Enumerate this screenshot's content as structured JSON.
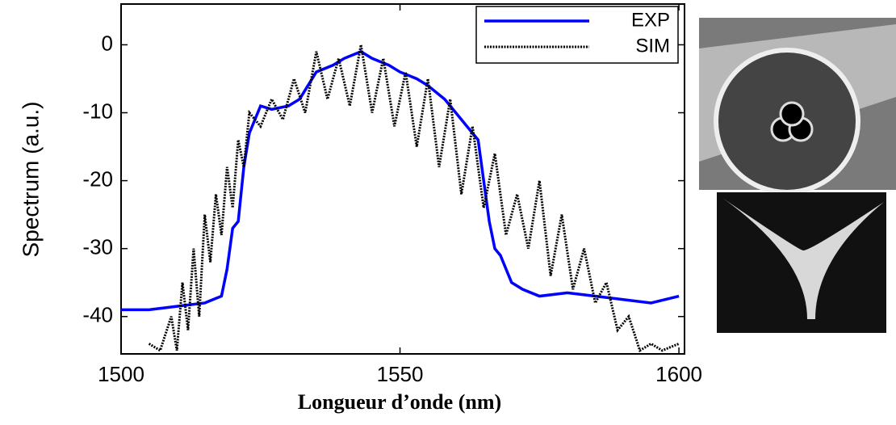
{
  "chart_data": {
    "type": "line",
    "xlabel": "Longueur d’onde (nm)",
    "ylabel": "Spectrum (a.u.)",
    "xlim": [
      1500,
      1601
    ],
    "ylim": [
      -45.5,
      6
    ],
    "xticks": [
      1500,
      1550,
      1600
    ],
    "yticks": [
      0,
      -10,
      -20,
      -30,
      -40
    ],
    "legend": "upper right",
    "series": [
      {
        "name": "EXP",
        "color": "#0000ff",
        "x": [
          1500,
          1505,
          1510,
          1515,
          1518,
          1519,
          1520,
          1521,
          1522,
          1523,
          1525,
          1527,
          1530,
          1532,
          1535,
          1538,
          1540,
          1543,
          1545,
          1548,
          1550,
          1553,
          1555,
          1558,
          1560,
          1562,
          1564,
          1565,
          1566,
          1567,
          1568,
          1570,
          1572,
          1575,
          1580,
          1585,
          1590,
          1595,
          1600
        ],
        "values": [
          -39,
          -39,
          -38.5,
          -38,
          -37,
          -33,
          -27,
          -26,
          -18,
          -13,
          -9,
          -9.5,
          -9,
          -8,
          -4,
          -3,
          -2,
          -1,
          -2,
          -3,
          -4,
          -5,
          -6,
          -8,
          -10,
          -12,
          -14,
          -20,
          -26,
          -30,
          -31,
          -35,
          -36,
          -37,
          -36.5,
          -37,
          -37.5,
          -38,
          -37
        ]
      },
      {
        "name": "SIM",
        "color": "#000000",
        "x": [
          1505,
          1507,
          1509,
          1510,
          1511,
          1512,
          1513,
          1514,
          1515,
          1516,
          1517,
          1518,
          1519,
          1520,
          1521,
          1522,
          1523,
          1525,
          1527,
          1529,
          1531,
          1533,
          1535,
          1537,
          1539,
          1541,
          1543,
          1545,
          1547,
          1549,
          1551,
          1553,
          1555,
          1557,
          1559,
          1561,
          1563,
          1565,
          1567,
          1569,
          1571,
          1573,
          1575,
          1577,
          1579,
          1581,
          1583,
          1585,
          1587,
          1589,
          1591,
          1593,
          1595,
          1597,
          1600
        ],
        "values": [
          -44,
          -45,
          -40,
          -45,
          -35,
          -42,
          -30,
          -40,
          -25,
          -32,
          -22,
          -28,
          -18,
          -24,
          -14,
          -18,
          -10,
          -12,
          -8,
          -11,
          -5,
          -10,
          -1,
          -8,
          -2,
          -9,
          0,
          -10,
          -2,
          -12,
          -4,
          -15,
          -5,
          -18,
          -8,
          -22,
          -12,
          -24,
          -16,
          -28,
          -22,
          -30,
          -20,
          -34,
          -25,
          -36,
          -30,
          -38,
          -35,
          -42,
          -40,
          -45,
          -44,
          -45,
          -44
        ]
      }
    ]
  }
}
